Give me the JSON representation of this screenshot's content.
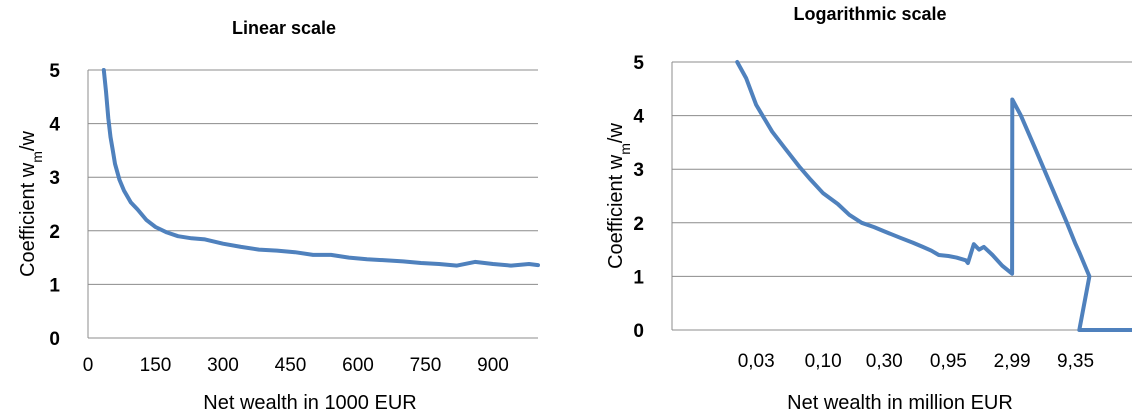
{
  "chart_data": [
    {
      "type": "line",
      "title": "Linear scale",
      "xlabel": "Net wealth in 1000 EUR",
      "ylabel": "Coefficient w_m/w",
      "ylabel_main": "Coefficient w",
      "ylabel_sub": "m",
      "ylabel_tail": "/w",
      "xlim": [
        0,
        1000
      ],
      "ylim": [
        0,
        5
      ],
      "x_ticks": [
        "0",
        "150",
        "300",
        "450",
        "600",
        "750",
        "900"
      ],
      "x_tick_values": [
        0,
        150,
        300,
        450,
        600,
        750,
        900
      ],
      "y_ticks": [
        "0",
        "1",
        "2",
        "3",
        "4",
        "5"
      ],
      "y_tick_values": [
        0,
        1,
        2,
        3,
        4,
        5
      ],
      "grid": true,
      "color": "#4f81bd",
      "series": [
        {
          "x": [
            35,
            40,
            45,
            50,
            55,
            60,
            70,
            80,
            95,
            110,
            130,
            150,
            175,
            200,
            230,
            260,
            300,
            340,
            380,
            420,
            460,
            500,
            540,
            580,
            620,
            660,
            700,
            740,
            780,
            820,
            860,
            900,
            940,
            980,
            1000
          ],
          "y": [
            5.0,
            4.6,
            4.1,
            3.75,
            3.5,
            3.25,
            2.95,
            2.75,
            2.53,
            2.4,
            2.2,
            2.07,
            1.97,
            1.9,
            1.86,
            1.84,
            1.76,
            1.7,
            1.65,
            1.63,
            1.6,
            1.55,
            1.55,
            1.5,
            1.47,
            1.45,
            1.43,
            1.4,
            1.38,
            1.35,
            1.42,
            1.38,
            1.35,
            1.38,
            1.36
          ]
        }
      ]
    },
    {
      "type": "line",
      "title": "Logarithmic scale",
      "xlabel": "Net wealth in million EUR",
      "ylabel": "Coefficient w_m/w",
      "ylabel_main": "Coefficient w",
      "ylabel_sub": "m",
      "ylabel_tail": "/w",
      "x_scale": "log",
      "xlim": [
        0.0066,
        25.8
      ],
      "ylim": [
        0,
        5
      ],
      "x_ticks": [
        "0,03",
        "0,10",
        "0,30",
        "0,95",
        "2,99",
        "9,35"
      ],
      "x_tick_values": [
        0.03,
        0.1,
        0.3,
        0.95,
        2.99,
        9.35
      ],
      "y_ticks": [
        "0",
        "1",
        "2",
        "3",
        "4",
        "5"
      ],
      "y_tick_values": [
        0,
        1,
        2,
        3,
        4,
        5
      ],
      "grid": true,
      "color": "#4f81bd",
      "series": [
        {
          "x": [
            0.0213,
            0.025,
            0.03,
            0.04,
            0.05,
            0.065,
            0.08,
            0.1,
            0.13,
            0.16,
            0.2,
            0.25,
            0.3,
            0.4,
            0.5,
            0.6,
            0.7,
            0.8,
            0.95,
            1.1,
            1.3,
            1.35,
            1.5,
            1.65,
            1.8,
            2.1,
            2.5,
            2.99,
            3.0,
            3.5,
            4.5,
            6.0,
            8.0,
            9.35,
            10.0,
            12.0,
            10.0,
            25.8
          ],
          "y": [
            5.0,
            4.7,
            4.2,
            3.7,
            3.4,
            3.05,
            2.8,
            2.55,
            2.35,
            2.15,
            2.0,
            1.92,
            1.84,
            1.72,
            1.63,
            1.55,
            1.48,
            1.4,
            1.38,
            1.35,
            1.3,
            1.25,
            1.6,
            1.5,
            1.55,
            1.4,
            1.2,
            1.05,
            4.3,
            4.0,
            3.4,
            2.7,
            2.0,
            1.6,
            1.45,
            1.0,
            0.0,
            0.0
          ]
        }
      ]
    }
  ]
}
